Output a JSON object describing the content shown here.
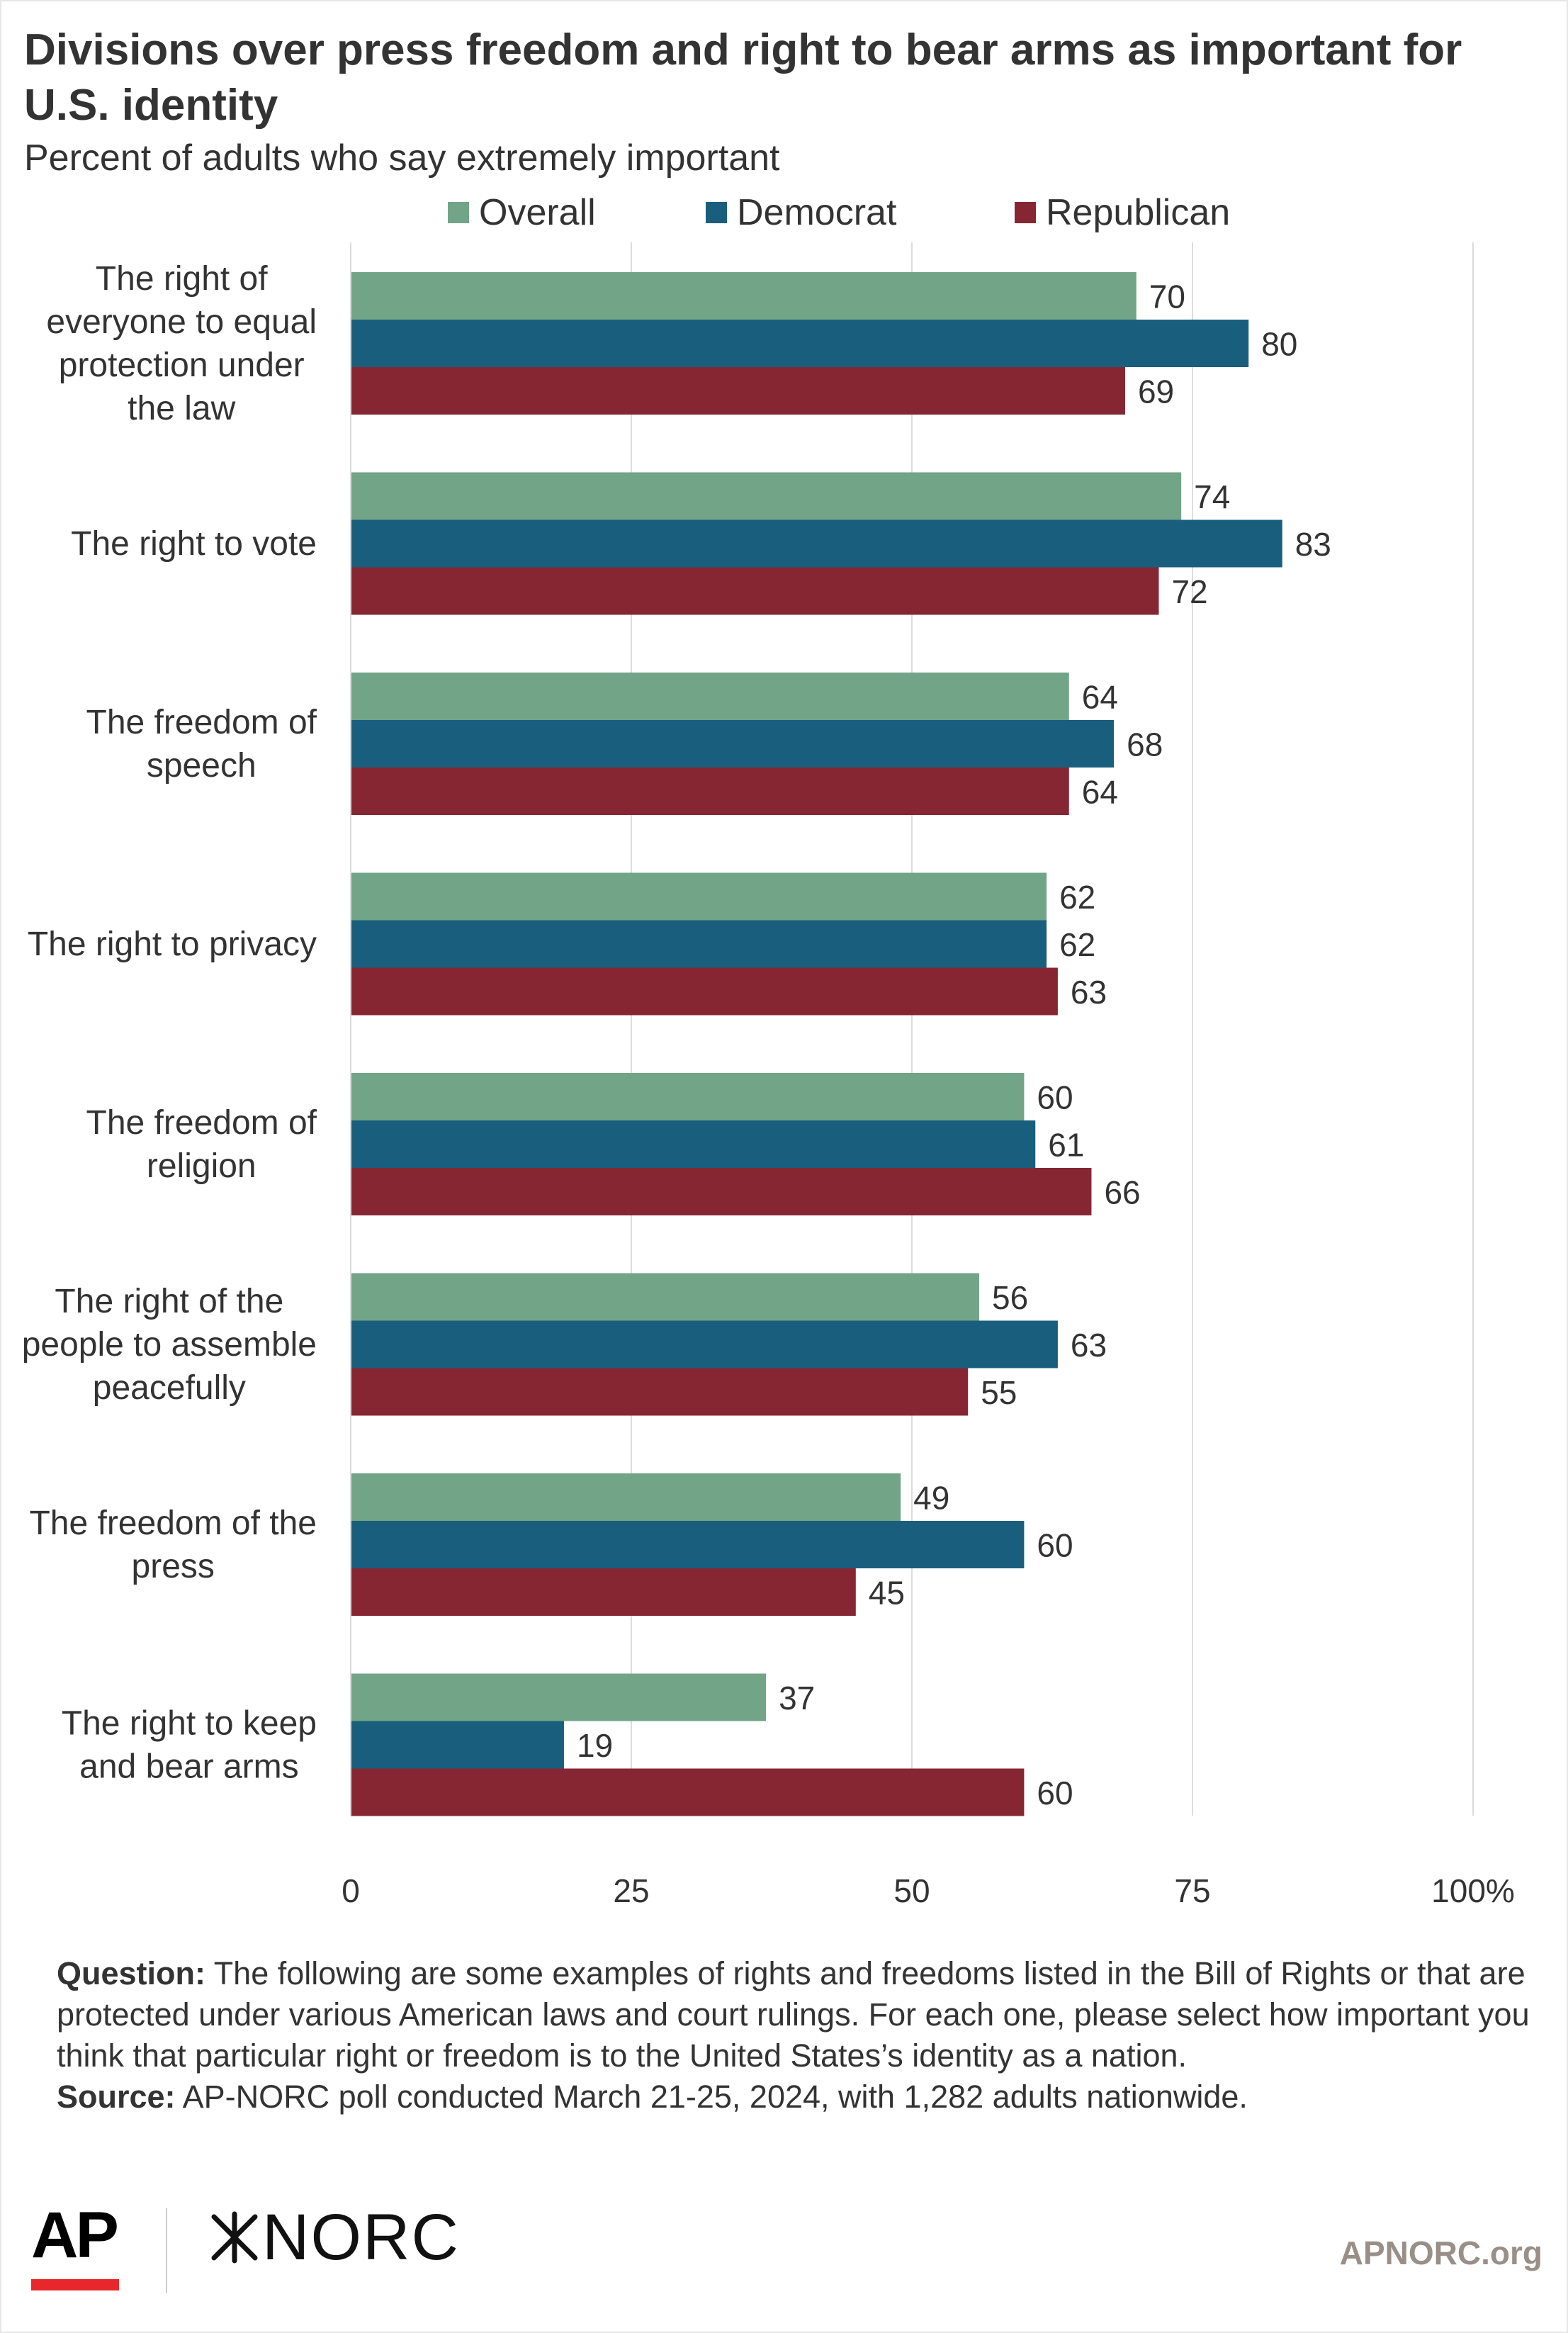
{
  "header": {
    "title": "Divisions over press freedom and right to bear arms as important for U.S. identity",
    "subtitle": "Percent of adults who say extremely important"
  },
  "legend": [
    {
      "label": "Overall",
      "color": "#72a487"
    },
    {
      "label": "Democrat",
      "color": "#1a5e7e"
    },
    {
      "label": "Republican",
      "color": "#862633"
    }
  ],
  "chart_data": {
    "type": "bar",
    "orientation": "horizontal",
    "categories": [
      "The right of everyone to equal protection under the law",
      "The right to vote",
      "The freedom of speech",
      "The right to privacy",
      "The freedom of religion",
      "The right of the people to assemble peacefully",
      "The freedom of the press",
      "The right to keep and bear arms"
    ],
    "category_label_lines": [
      [
        "The right of",
        "everyone to equal",
        "protection under",
        "the law"
      ],
      [
        "The right to vote"
      ],
      [
        "The freedom of",
        "speech"
      ],
      [
        "The right to privacy"
      ],
      [
        "The freedom of",
        "religion"
      ],
      [
        "The right of the",
        "people to assemble",
        "peacefully"
      ],
      [
        "The freedom of the",
        "press"
      ],
      [
        "The right to keep",
        "and bear arms"
      ]
    ],
    "series": [
      {
        "name": "Overall",
        "color": "#72a487",
        "values": [
          70,
          74,
          64,
          62,
          60,
          56,
          49,
          37
        ]
      },
      {
        "name": "Democrat",
        "color": "#1a5e7e",
        "values": [
          80,
          83,
          68,
          62,
          61,
          63,
          60,
          19
        ]
      },
      {
        "name": "Republican",
        "color": "#862633",
        "values": [
          69,
          72,
          64,
          63,
          66,
          55,
          45,
          60
        ]
      }
    ],
    "x_ticks": [
      0,
      25,
      50,
      75,
      100
    ],
    "x_tick_labels": [
      "0",
      "25",
      "50",
      "75",
      "100%"
    ],
    "xlim": [
      0,
      100
    ],
    "grid": true,
    "legend_position": "top"
  },
  "footer": {
    "question_label": "Question:",
    "question_text": " The following are some examples of rights and freedoms listed in the Bill of Rights or that are protected under various American laws and court rulings. For each one, please select how important you think that particular right or freedom is to the United States’s identity as a nation.",
    "source_label": "Source:",
    "source_text": " AP-NORC poll conducted March 21-25, 2024, with 1,282 adults nationwide.",
    "logo_ap": "AP",
    "logo_norc": "NORC",
    "site": "APNORC.org"
  }
}
